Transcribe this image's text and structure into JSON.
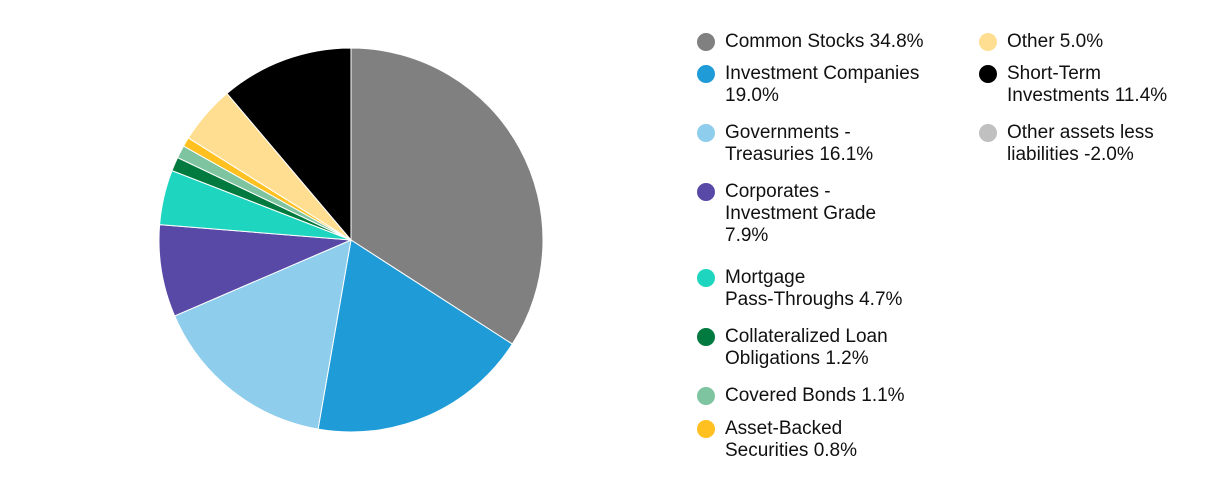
{
  "chart_data": {
    "type": "pie",
    "title": "",
    "slices": [
      {
        "label": "Common Stocks",
        "display": "Common Stocks 34.8%",
        "value": 34.8,
        "color": "#808080"
      },
      {
        "label": "Investment Companies",
        "display": "Investment Companies 19.0%",
        "value": 19.0,
        "color": "#1F9BD7"
      },
      {
        "label": "Governments - Treasuries",
        "display": "Governments - Treasuries 16.1%",
        "value": 16.1,
        "color": "#8ECDEC"
      },
      {
        "label": "Corporates - Investment Grade",
        "display": "Corporates - Investment Grade 7.9%",
        "value": 7.9,
        "color": "#5849A6"
      },
      {
        "label": "Mortgage Pass-Throughs",
        "display": "Mortgage Pass-Throughs 4.7%",
        "value": 4.7,
        "color": "#1ED6C0"
      },
      {
        "label": "Collateralized Loan Obligations",
        "display": "Collateralized Loan Obligations 1.2%",
        "value": 1.2,
        "color": "#007A3E"
      },
      {
        "label": "Covered Bonds",
        "display": "Covered Bonds 1.1%",
        "value": 1.1,
        "color": "#7FC4A0"
      },
      {
        "label": "Asset-Backed Securities",
        "display": "Asset-Backed Securities 0.8%",
        "value": 0.8,
        "color": "#FFC020"
      },
      {
        "label": "Other",
        "display": "Other 5.0%",
        "value": 5.0,
        "color": "#FFDE91"
      },
      {
        "label": "Short-Term Investments",
        "display": "Short-Term Investments 11.4%",
        "value": 11.4,
        "color": "#000000"
      },
      {
        "label": "Other assets less liabilities",
        "display": "Other assets less liabilities -2.0%",
        "value": -2.0,
        "color": "#C0C0C0"
      }
    ],
    "legend_placement": "right"
  },
  "legend": {
    "items": [
      {
        "lines": [
          "Common Stocks 34.8%"
        ],
        "color": "#808080"
      },
      {
        "lines": [
          "Investment Companies",
          "19.0%"
        ],
        "color": "#1F9BD7"
      },
      {
        "lines": [
          "Governments -",
          "Treasuries 16.1%"
        ],
        "color": "#8ECDEC"
      },
      {
        "lines": [
          "Corporates -",
          "Investment Grade",
          "7.9%"
        ],
        "color": "#5849A6"
      },
      {
        "lines": [
          "Mortgage",
          "Pass-Throughs 4.7%"
        ],
        "color": "#1ED6C0"
      },
      {
        "lines": [
          "Collateralized Loan",
          "Obligations 1.2%"
        ],
        "color": "#007A3E"
      },
      {
        "lines": [
          "Covered Bonds 1.1%"
        ],
        "color": "#7FC4A0"
      },
      {
        "lines": [
          "Asset-Backed",
          "Securities 0.8%"
        ],
        "color": "#FFC020"
      },
      {
        "lines": [
          "Other 5.0%"
        ],
        "color": "#FFDE91"
      },
      {
        "lines": [
          "Short-Term",
          "Investments 11.4%"
        ],
        "color": "#000000"
      },
      {
        "lines": [
          "Other assets less",
          "liabilities -2.0%"
        ],
        "color": "#C0C0C0"
      }
    ]
  }
}
